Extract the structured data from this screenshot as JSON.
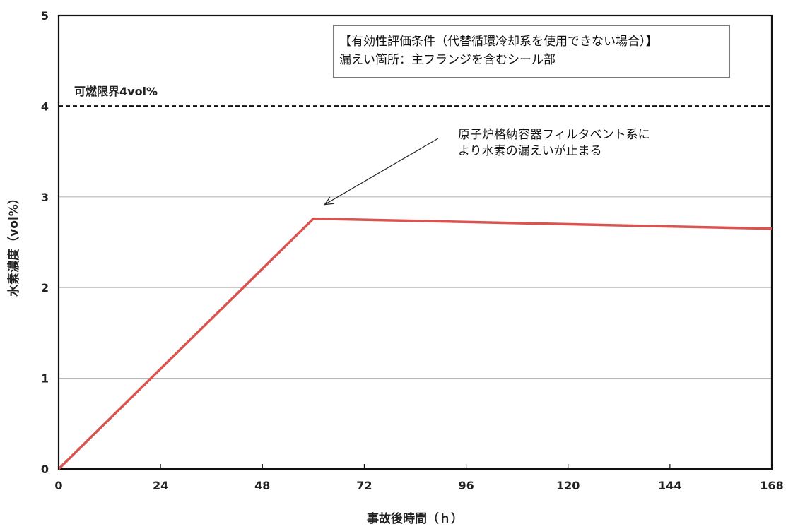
{
  "chart_data": {
    "type": "line",
    "xlabel": "事故後時間（ｈ）",
    "ylabel": "水素濃度（vol%）",
    "xlim": [
      0,
      168
    ],
    "ylim": [
      0,
      5
    ],
    "x_ticks": [
      0,
      24,
      48,
      72,
      96,
      120,
      144,
      168
    ],
    "y_ticks": [
      0,
      1,
      2,
      3,
      4,
      5
    ],
    "grid": "horizontal",
    "series": [
      {
        "color": "#d9534f",
        "x": [
          0,
          60,
          168
        ],
        "y": [
          0,
          2.76,
          2.65
        ]
      }
    ],
    "threshold": {
      "label": "可燃限界4vol%",
      "value": 4,
      "style": "dashed"
    },
    "condition_box": {
      "line1": "【有効性評価条件（代替循環冷却系を使用できない場合）】",
      "line2": "漏えい箇所：主フランジを含むシール部"
    },
    "annotation": {
      "line1": "原子炉格納容器フィルタベント系に",
      "line2": "より水素の漏えいが止まる",
      "x": 60,
      "y": 2.76
    }
  }
}
